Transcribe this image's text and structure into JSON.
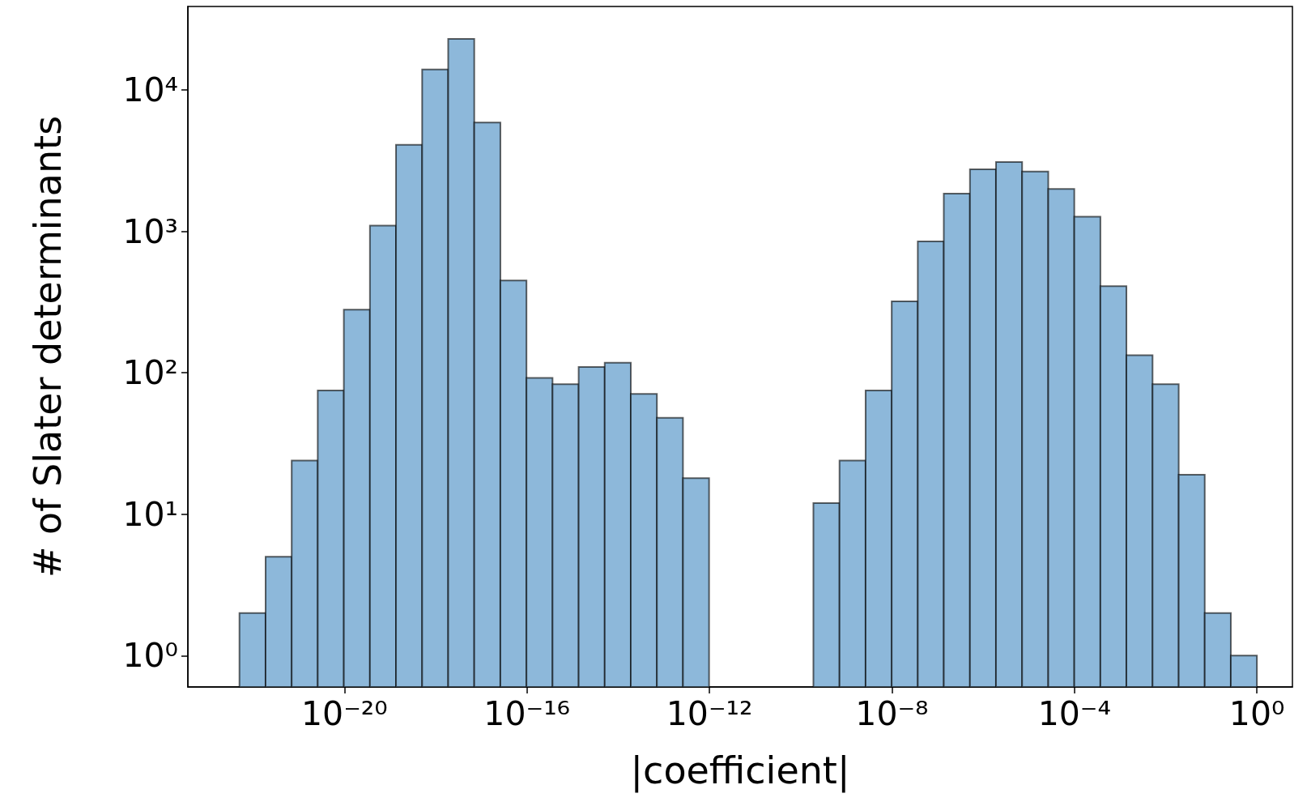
{
  "chart_data": {
    "type": "histogram",
    "xlabel": "|coefficient|",
    "ylabel": "# of Slater determinants",
    "color": "#8db8da",
    "log": "xy",
    "grid": false,
    "bins": [
      5e-23,
      1.87e-22,
      6.98e-22,
      2.6e-21,
      9.7e-21,
      3.62e-20,
      1.35e-19,
      5.05e-19,
      1.88e-18,
      7e-18,
      2.62e-17,
      9.77e-17,
      3.64e-16,
      1.36e-15,
      5.07e-15,
      1.89e-14,
      7.06e-14,
      2.63e-13,
      9.82e-13,
      3.66e-12,
      1.37e-11,
      5.1e-11,
      1.9e-10,
      7.1e-10,
      2.65e-09,
      9.89e-09,
      3.69e-08,
      1.37e-07,
      5.13e-07,
      1.91e-06,
      7.14e-06,
      2.67e-05,
      9.93e-05,
      0.000371,
      0.00138,
      0.00516,
      0.0193,
      0.0718,
      0.268,
      1
    ],
    "values": [
      2,
      5,
      24,
      75,
      280,
      1100,
      4100,
      14000,
      23000,
      5900,
      450,
      92,
      83,
      110,
      118,
      71,
      48,
      18,
      null,
      null,
      null,
      null,
      12,
      24,
      75,
      320,
      850,
      1850,
      2750,
      3100,
      2650,
      2000,
      1270,
      410,
      133,
      83,
      19,
      2,
      1
    ],
    "xlim": [
      3.7e-24,
      6
    ],
    "ylim": [
      0.6,
      39000
    ],
    "xticks": [
      {
        "value": 1e-20,
        "label": "10⁻²⁰"
      },
      {
        "value": 1e-16,
        "label": "10⁻¹⁶"
      },
      {
        "value": 1e-12,
        "label": "10⁻¹²"
      },
      {
        "value": 1e-08,
        "label": "10⁻⁸"
      },
      {
        "value": 0.0001,
        "label": "10⁻⁴"
      },
      {
        "value": 1,
        "label": "10⁰"
      }
    ],
    "yticks": [
      {
        "value": 1,
        "label": "10⁰"
      },
      {
        "value": 10,
        "label": "10¹"
      },
      {
        "value": 100,
        "label": "10²"
      },
      {
        "value": 1000,
        "label": "10³"
      },
      {
        "value": 10000,
        "label": "10⁴"
      }
    ]
  }
}
